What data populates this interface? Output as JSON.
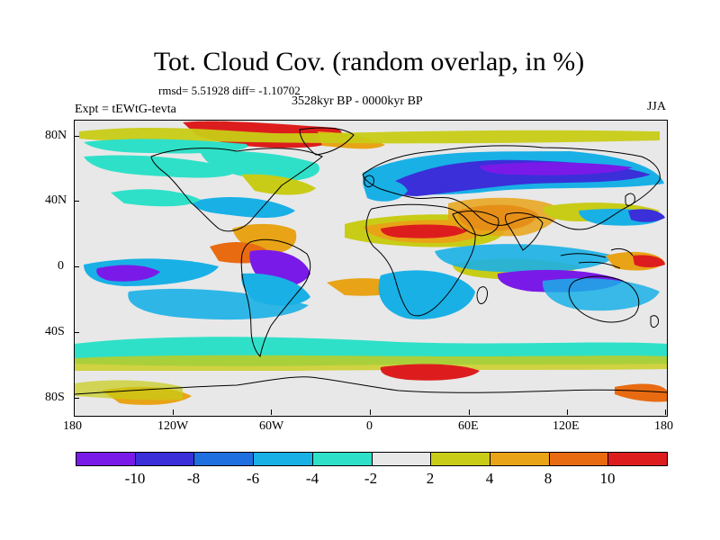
{
  "header": {
    "title": "Tot. Cloud Cov. (random overlap, in %)",
    "stats": "rmsd= 5.51928 diff= -1.10702",
    "period": "3528kyr BP - 0000kyr BP",
    "experiment": "Expt = tEWtG-tevta",
    "season": "JJA"
  },
  "map": {
    "projection": "cylindrical equidistant",
    "lon_range": [
      -180,
      180
    ],
    "lat_range": [
      -90,
      90
    ],
    "y_ticks": [
      {
        "label": "80N",
        "lat": 80
      },
      {
        "label": "40N",
        "lat": 40
      },
      {
        "label": "0",
        "lat": 0
      },
      {
        "label": "40S",
        "lat": -40
      },
      {
        "label": "80S",
        "lat": -80
      }
    ],
    "x_ticks": [
      {
        "label": "180",
        "lon": -180
      },
      {
        "label": "120W",
        "lon": -120
      },
      {
        "label": "60W",
        "lon": -60
      },
      {
        "label": "0",
        "lon": 0
      },
      {
        "label": "60E",
        "lon": 60
      },
      {
        "label": "120E",
        "lon": 120
      },
      {
        "label": "180",
        "lon": 180
      }
    ],
    "background_color": "#e8e8e8",
    "coastline_color": "#000000"
  },
  "colorbar": {
    "colors": [
      "#7a1ae8",
      "#3a2fd9",
      "#1f6fe0",
      "#19b0e6",
      "#2fe0c8",
      "#e8e8e8",
      "#c8cc16",
      "#e8a317",
      "#e86b12",
      "#dd1d1d"
    ],
    "labels": [
      "-10",
      "-8",
      "-6",
      "-4",
      "-2",
      "2",
      "4",
      "8",
      "10"
    ]
  }
}
